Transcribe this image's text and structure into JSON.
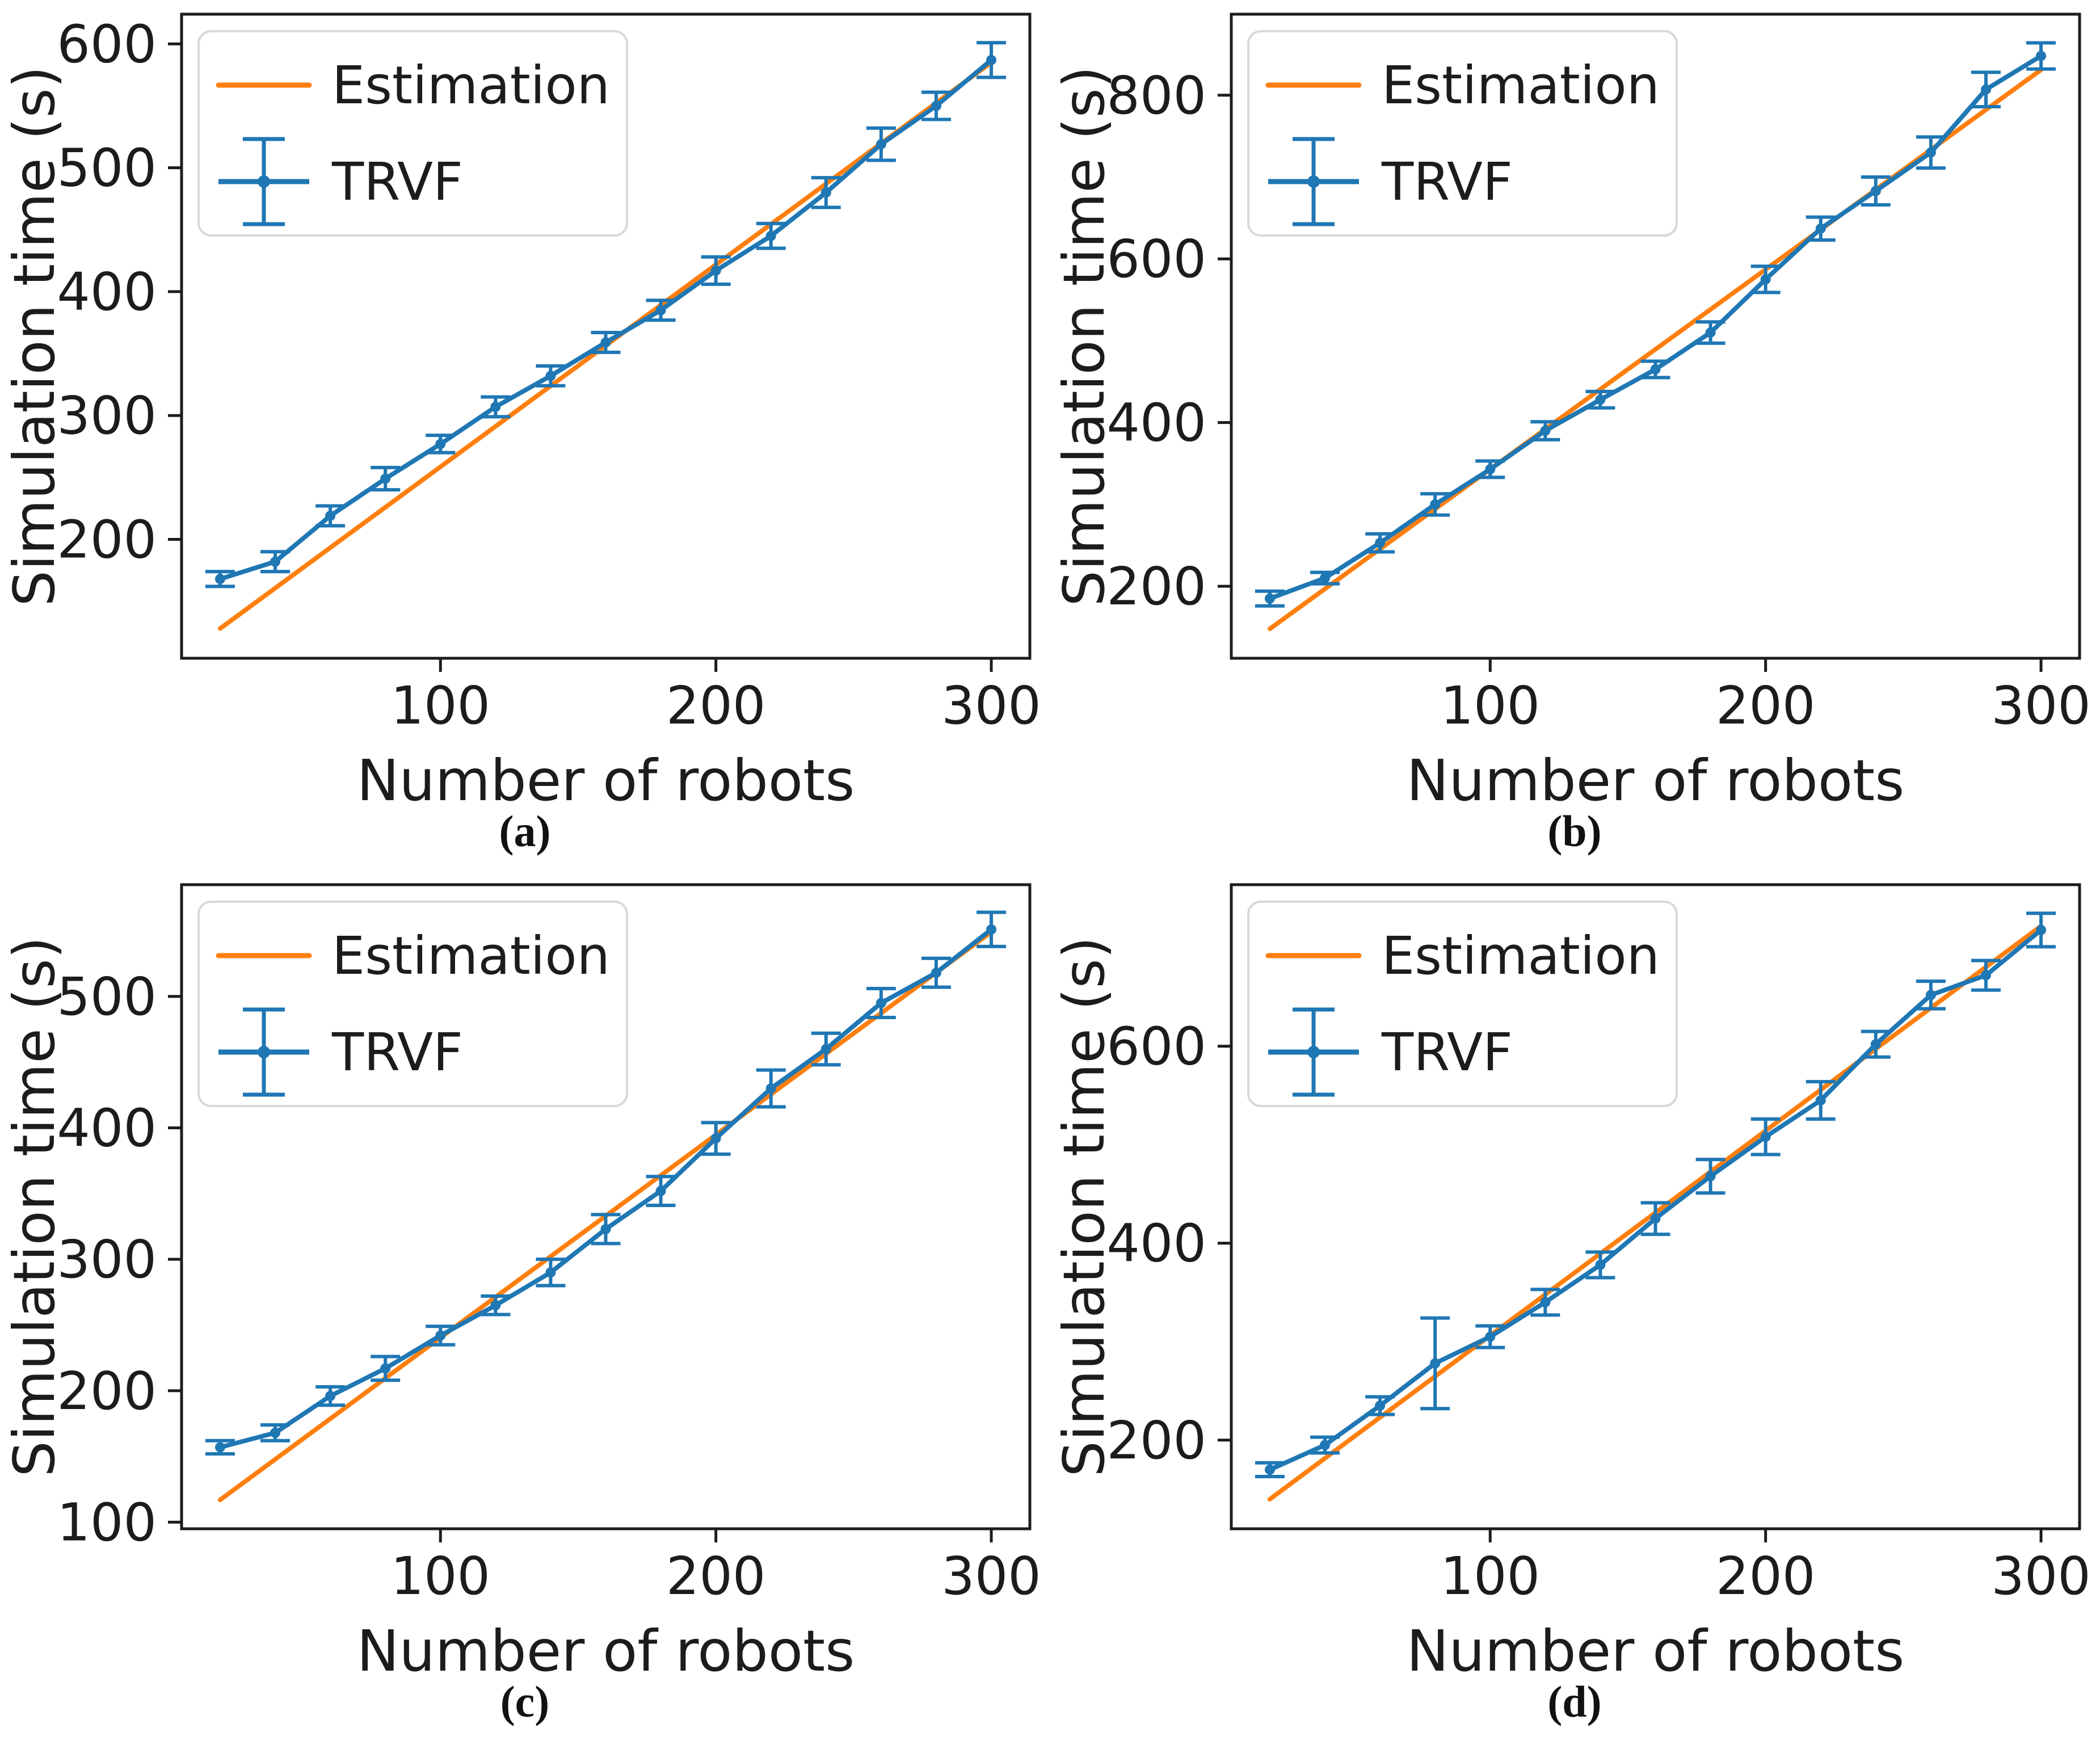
{
  "page": {
    "background": "#ffffff",
    "description": "2x2 grid of matplotlib line charts comparing Estimation vs TRVF simulation time"
  },
  "colors": {
    "estimation": "#ff7f0e",
    "trvf": "#1f77b4",
    "axis": "#1c1c1c",
    "legend_border": "#d8d8d8",
    "legend_fill": "#ffffff"
  },
  "chart_data": [
    {
      "type": "line",
      "caption": "(a)",
      "xlabel": "Number of robots",
      "ylabel": "Simulation time (s)",
      "x": [
        20,
        40,
        60,
        80,
        100,
        120,
        140,
        160,
        180,
        200,
        220,
        240,
        260,
        280,
        300
      ],
      "xticks": [
        100,
        200,
        300
      ],
      "xlim": [
        6,
        314
      ],
      "yticks": [
        200,
        300,
        400,
        500,
        600
      ],
      "ylim": [
        104,
        624
      ],
      "legend": [
        "Estimation",
        "TRVF"
      ],
      "series": [
        {
          "name": "Estimation",
          "kind": "line",
          "x": [
            20,
            300
          ],
          "y": [
            128,
            585
          ],
          "color": "#ff7f0e"
        },
        {
          "name": "TRVF",
          "kind": "errorbar",
          "y": [
            168,
            182,
            219,
            249,
            277,
            307,
            332,
            359,
            385,
            417,
            445,
            480,
            519,
            550,
            587
          ],
          "yerr": [
            6,
            8,
            8,
            9,
            7,
            8,
            8,
            8,
            8,
            11,
            10,
            12,
            13,
            11,
            14
          ],
          "color": "#1f77b4"
        }
      ]
    },
    {
      "type": "line",
      "caption": "(b)",
      "xlabel": "Number of robots",
      "ylabel": "Simulation time (s)",
      "x": [
        20,
        40,
        60,
        80,
        100,
        120,
        140,
        160,
        180,
        200,
        220,
        240,
        260,
        280,
        300
      ],
      "xticks": [
        100,
        200,
        300
      ],
      "xlim": [
        6,
        314
      ],
      "yticks": [
        200,
        400,
        600,
        800
      ],
      "ylim": [
        112,
        899
      ],
      "legend": [
        "Estimation",
        "TRVF"
      ],
      "series": [
        {
          "name": "Estimation",
          "kind": "line",
          "x": [
            20,
            300
          ],
          "y": [
            148,
            831
          ],
          "color": "#ff7f0e"
        },
        {
          "name": "TRVF",
          "kind": "errorbar",
          "y": [
            185,
            210,
            253,
            300,
            343,
            390,
            428,
            465,
            510,
            575,
            637,
            683,
            730,
            807,
            848
          ],
          "yerr": [
            9,
            7,
            11,
            13,
            10,
            11,
            10,
            10,
            13,
            16,
            14,
            17,
            19,
            21,
            16
          ],
          "color": "#1f77b4"
        }
      ]
    },
    {
      "type": "line",
      "caption": "(c)",
      "xlabel": "Number of robots",
      "ylabel": "Simulation time (s)",
      "x": [
        20,
        40,
        60,
        80,
        100,
        120,
        140,
        160,
        180,
        200,
        220,
        240,
        260,
        280,
        300
      ],
      "xticks": [
        100,
        200,
        300
      ],
      "xlim": [
        6,
        314
      ],
      "yticks": [
        100,
        200,
        300,
        400,
        500
      ],
      "ylim": [
        95,
        585
      ],
      "legend": [
        "Estimation",
        "TRVF"
      ],
      "series": [
        {
          "name": "Estimation",
          "kind": "line",
          "x": [
            20,
            300
          ],
          "y": [
            117,
            549
          ],
          "color": "#ff7f0e"
        },
        {
          "name": "TRVF",
          "kind": "errorbar",
          "y": [
            157,
            168,
            196,
            217,
            242,
            265,
            290,
            323,
            352,
            392,
            430,
            460,
            495,
            518,
            551
          ],
          "yerr": [
            5,
            6,
            7,
            9,
            7,
            7,
            10,
            11,
            11,
            12,
            14,
            12,
            11,
            11,
            13
          ],
          "color": "#1f77b4"
        }
      ]
    },
    {
      "type": "line",
      "caption": "(d)",
      "xlabel": "Number of robots",
      "ylabel": "Simulation time (s)",
      "x": [
        20,
        40,
        60,
        80,
        100,
        120,
        140,
        160,
        180,
        200,
        220,
        240,
        260,
        280,
        300
      ],
      "xticks": [
        100,
        200,
        300
      ],
      "xlim": [
        6,
        314
      ],
      "yticks": [
        200,
        400,
        600
      ],
      "ylim": [
        110,
        764
      ],
      "legend": [
        "Estimation",
        "TRVF"
      ],
      "series": [
        {
          "name": "Estimation",
          "kind": "line",
          "x": [
            20,
            300
          ],
          "y": [
            140,
            722
          ],
          "color": "#ff7f0e"
        },
        {
          "name": "TRVF",
          "kind": "errorbar",
          "y": [
            170,
            195,
            235,
            278,
            305,
            340,
            378,
            425,
            468,
            508,
            545,
            602,
            652,
            672,
            718
          ],
          "yerr": [
            7,
            8,
            9,
            46,
            11,
            13,
            13,
            16,
            17,
            18,
            19,
            13,
            14,
            15,
            17
          ],
          "color": "#1f77b4"
        }
      ]
    }
  ]
}
